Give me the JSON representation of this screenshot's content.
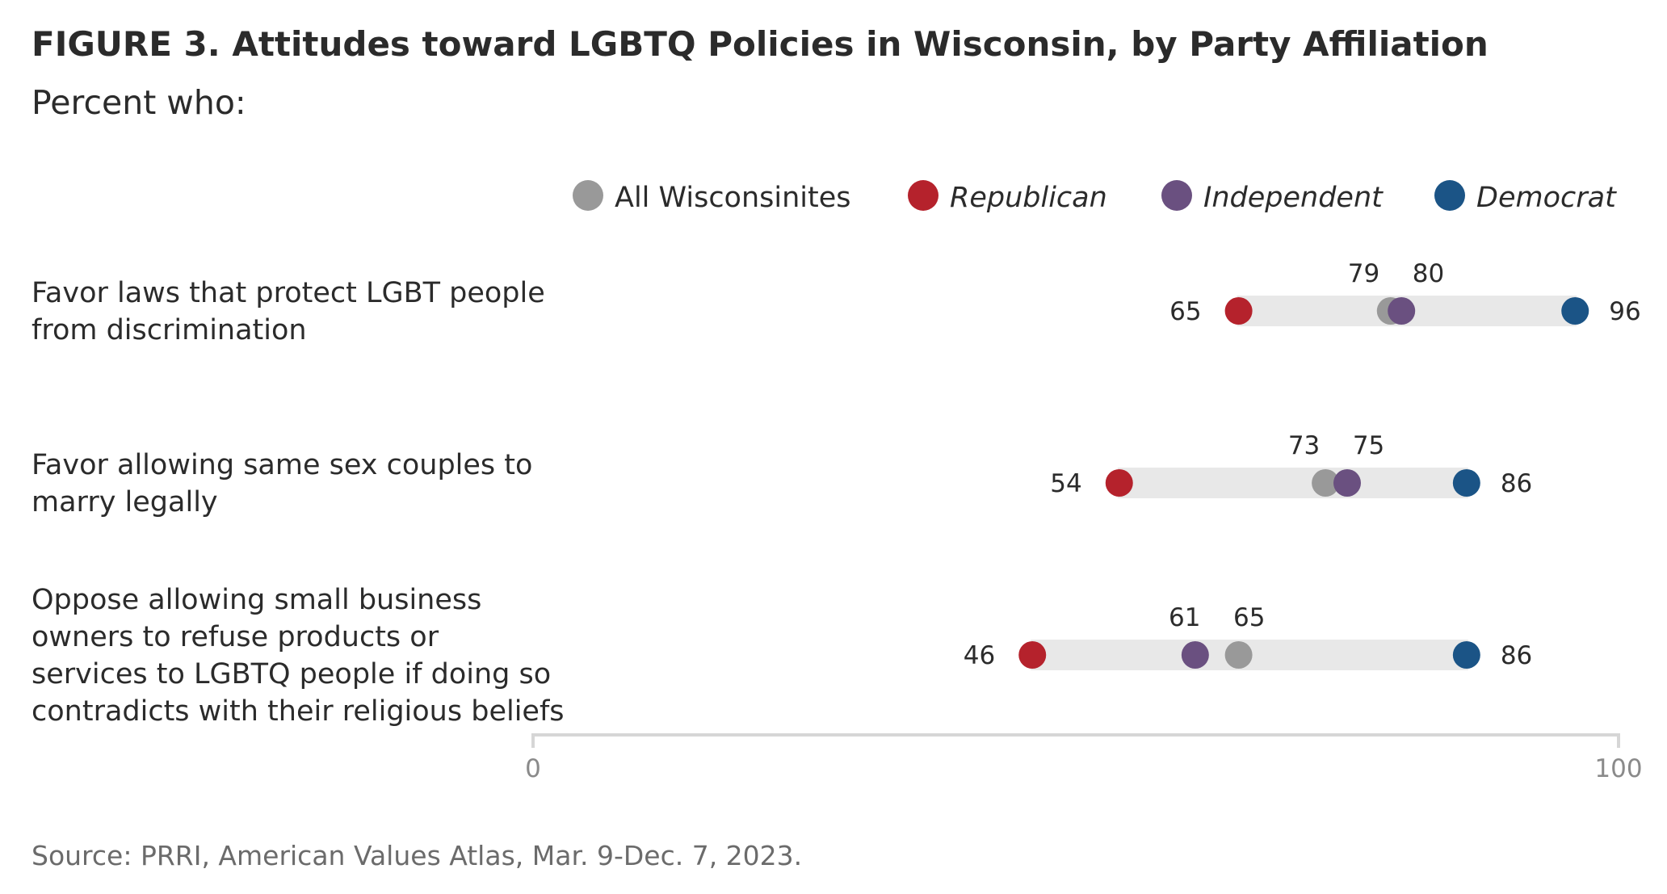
{
  "title": "FIGURE 3. Attitudes toward LGBTQ Policies in Wisconsin, by Party Affiliation",
  "subtitle": "Percent who:",
  "source": "Source: PRRI, American Values Atlas, Mar. 9-Dec. 7, 2023.",
  "chart_data": {
    "type": "dot-range",
    "xlim": [
      0,
      100
    ],
    "x_ticks": [
      0,
      100
    ],
    "grid": false,
    "legend_position": "top",
    "series": [
      {
        "key": "all",
        "name": "All Wisconsinites",
        "color": "#999999",
        "italic": false
      },
      {
        "key": "rep",
        "name": "Republican",
        "color": "#b5222c",
        "italic": true
      },
      {
        "key": "ind",
        "name": "Independent",
        "color": "#6a5080",
        "italic": true
      },
      {
        "key": "dem",
        "name": "Democrat",
        "color": "#1b5486",
        "italic": true
      }
    ],
    "rows": [
      {
        "label_lines": [
          "Favor laws that protect LGBT people",
          "from discrimination"
        ],
        "values": {
          "all": 79,
          "rep": 65,
          "ind": 80,
          "dem": 96
        }
      },
      {
        "label_lines": [
          "Favor allowing same sex couples to",
          "marry legally"
        ],
        "values": {
          "all": 73,
          "rep": 54,
          "ind": 75,
          "dem": 86
        }
      },
      {
        "label_lines": [
          "Oppose allowing small business",
          "owners to refuse products or",
          "services to LGBTQ people if doing so",
          "contradicts with their religious beliefs"
        ],
        "values": {
          "all": 65,
          "rep": 46,
          "ind": 61,
          "dem": 86
        }
      }
    ]
  }
}
